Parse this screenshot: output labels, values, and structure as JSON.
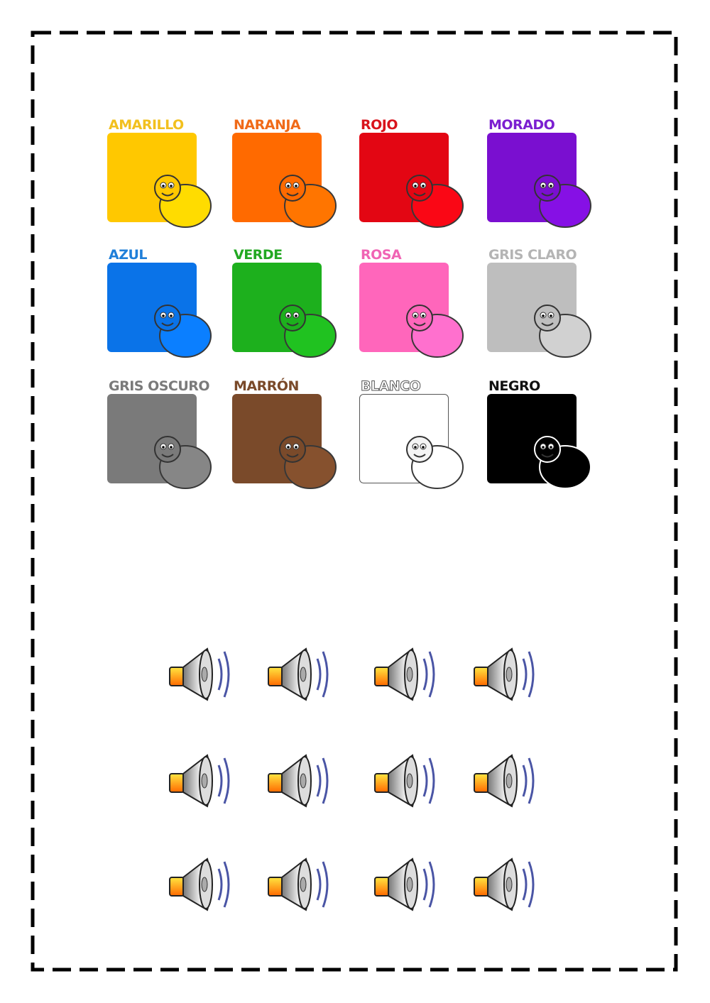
{
  "colors": [
    {
      "label": "AMARILLO",
      "color": "#FFC800",
      "label_color": "#F2C01E",
      "animal": "banana-icon"
    },
    {
      "label": "NARANJA",
      "color": "#FF6A00",
      "label_color": "#F06A18",
      "animal": "squirrel-icon"
    },
    {
      "label": "ROJO",
      "color": "#E30613",
      "label_color": "#D9141C",
      "animal": "ladybug-icon"
    },
    {
      "label": "MORADO",
      "color": "#7A0FD0",
      "label_color": "#7B1FD0",
      "animal": "octopus-icon"
    },
    {
      "label": "AZUL",
      "color": "#0A73E8",
      "label_color": "#1F7FD9",
      "animal": "bird-icon"
    },
    {
      "label": "VERDE",
      "color": "#1DB01D",
      "label_color": "#22A822",
      "animal": "apple-icon"
    },
    {
      "label": "ROSA",
      "color": "#FF66BB",
      "label_color": "#F064B4",
      "animal": "pig-icon"
    },
    {
      "label": "GRIS CLARO",
      "color": "#BEBEBE",
      "label_color": "#B4B4B4",
      "animal": "rabbit-icon"
    },
    {
      "label": "GRIS OSCURO",
      "color": "#7A7A7A",
      "label_color": "#7A7A7A",
      "animal": "gorilla-icon"
    },
    {
      "label": "MARRÓN",
      "color": "#7A4A2A",
      "label_color": "#7A4A2A",
      "animal": "dog-icon"
    },
    {
      "label": "BLANCO",
      "color": "#FFFFFF",
      "label_color": "#FFFFFF",
      "animal": "polar-bear-icon"
    },
    {
      "label": "NEGRO",
      "color": "#000000",
      "label_color": "#111111",
      "animal": "cat-icon"
    }
  ],
  "speakers_count_icon": "speaker-icon"
}
